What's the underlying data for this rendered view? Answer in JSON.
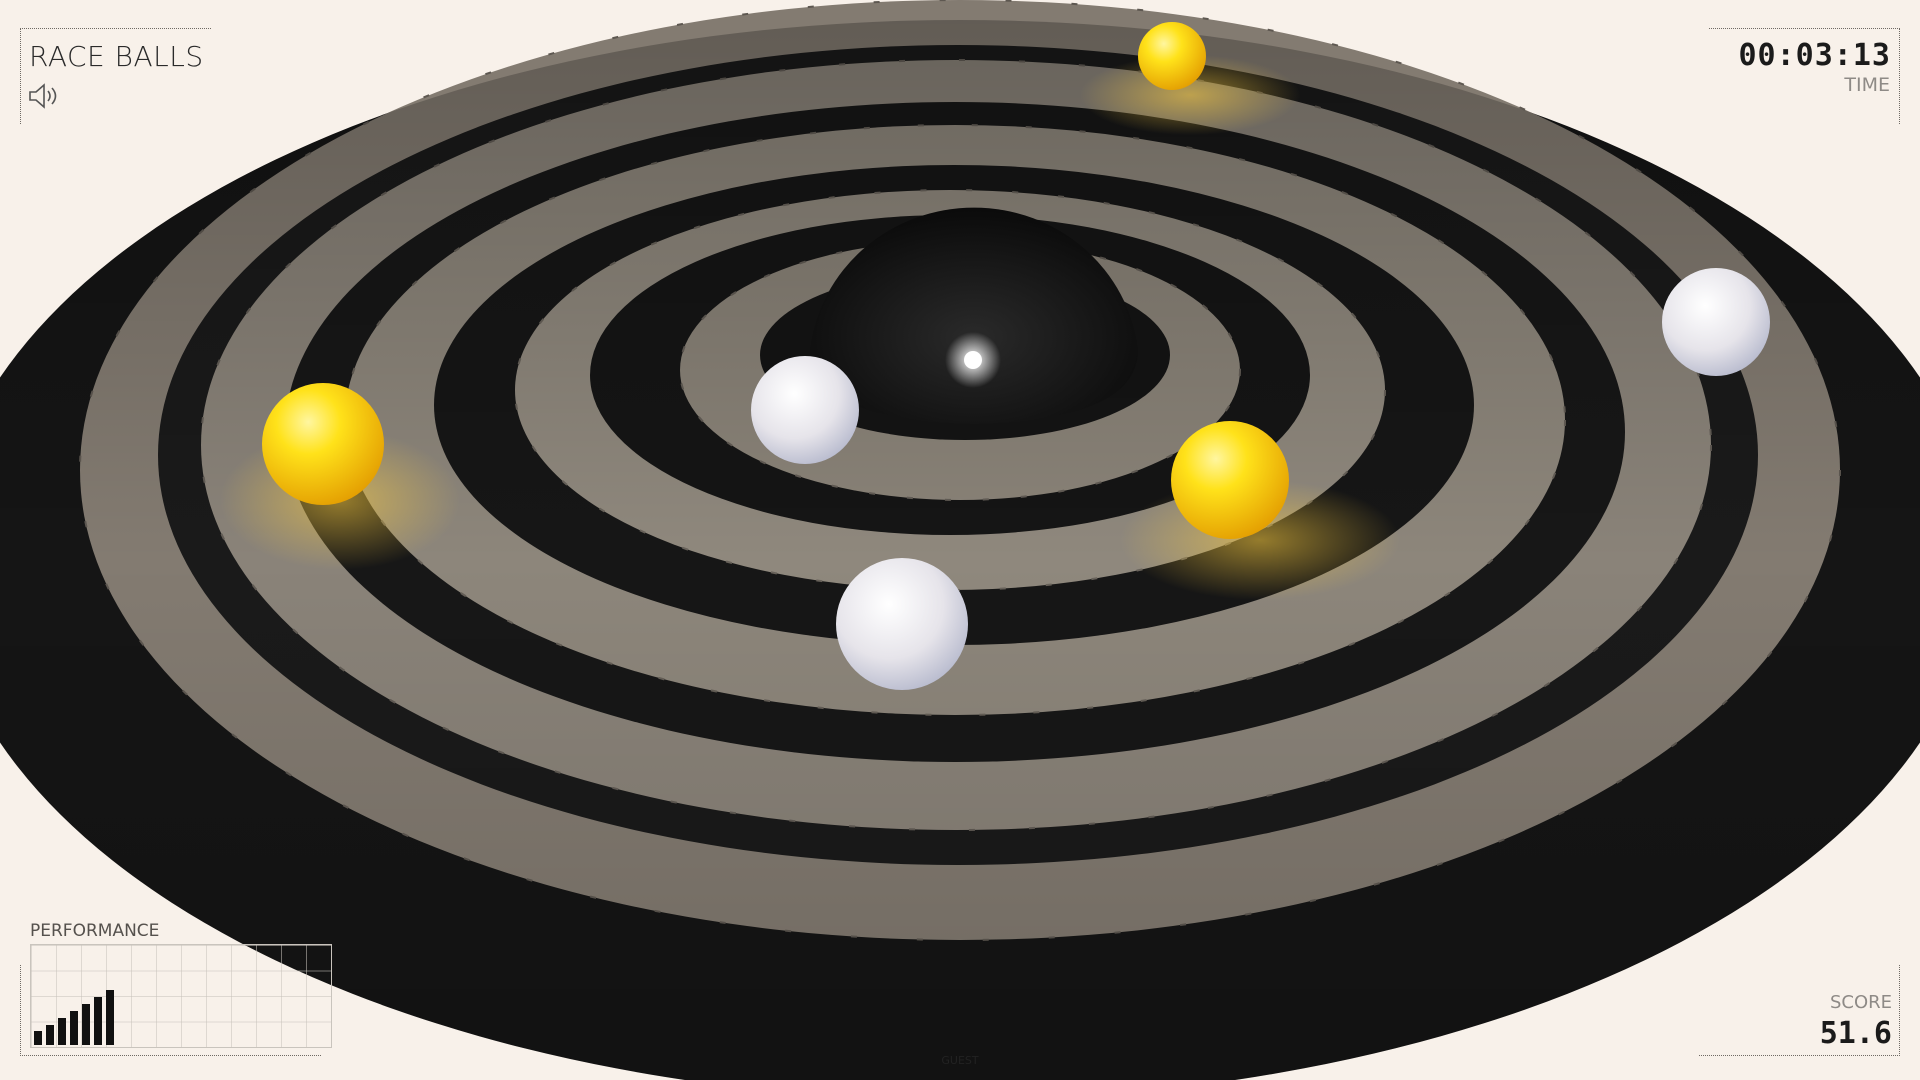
{
  "hud": {
    "title": "RACE BALLS",
    "sound_icon": "speaker-icon",
    "timer": "00:03:13",
    "timer_label": "TIME",
    "performance_label": "PERFORMANCE",
    "performance_bars": [
      0.22,
      0.33,
      0.44,
      0.55,
      0.66,
      0.77,
      0.88
    ],
    "score_label": "SCORE",
    "score": "51.6",
    "player": "GUEST"
  },
  "scene": {
    "background_color": "#f8f1ea",
    "track_dark": "#161616",
    "track_light": "#8e877d",
    "ball_colors": {
      "yellow": "#ffd500",
      "white": "#e4e6ef"
    },
    "balls": [
      {
        "color": "yellow"
      },
      {
        "color": "yellow"
      },
      {
        "color": "yellow"
      },
      {
        "color": "white"
      },
      {
        "color": "white"
      },
      {
        "color": "white"
      }
    ]
  }
}
